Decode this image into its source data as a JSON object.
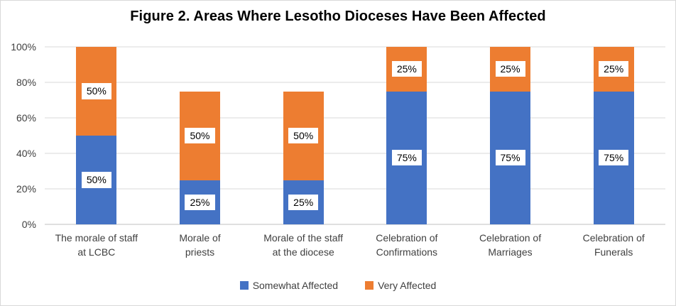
{
  "chart_data": {
    "type": "bar",
    "stacked": true,
    "title": "Figure 2. Areas Where Lesotho Dioceses Have Been Affected",
    "categories": [
      "The morale of staff\nat LCBC",
      "Morale of\npriests",
      "Morale of the staff\nat the diocese",
      "Celebration of\nConfirmations",
      "Celebration of\nMarriages",
      "Celebration of\nFunerals"
    ],
    "series": [
      {
        "name": "Somewhat Affected",
        "color": "#4472C4",
        "values": [
          50,
          25,
          25,
          75,
          75,
          75
        ]
      },
      {
        "name": "Very Affected",
        "color": "#ED7D31",
        "values": [
          50,
          50,
          50,
          25,
          25,
          25
        ]
      }
    ],
    "data_labels": [
      "%",
      "50%",
      "25%",
      "75%"
    ],
    "y_ticks": [
      "0%",
      "20%",
      "40%",
      "60%",
      "80%",
      "100%"
    ],
    "ylim": [
      0,
      100
    ],
    "grid": true,
    "legend_position": "bottom",
    "colors": {
      "axis_line": "#BFBFBF",
      "gridline": "#D9D9D9",
      "tick_text": "#404040",
      "data_label_bg": "#FFFFFF"
    }
  }
}
